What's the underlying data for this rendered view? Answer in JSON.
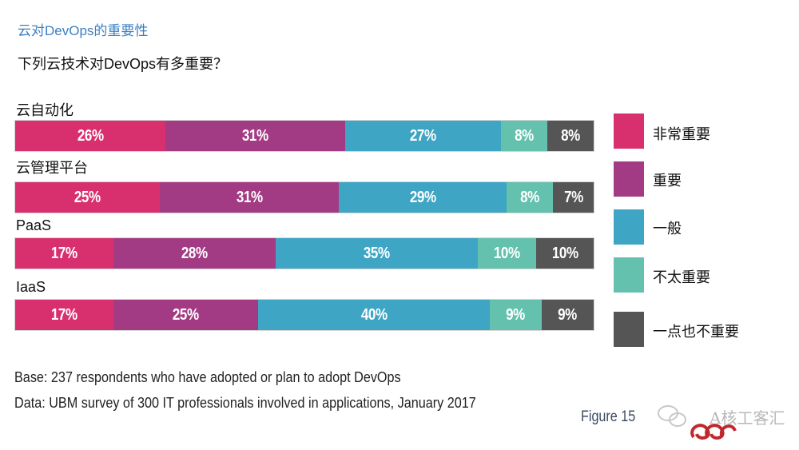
{
  "page": {
    "title": "云对DevOps的重要性",
    "question": "下列云技术对DevOps有多重要？"
  },
  "colors": {
    "very_important": "#d8306e",
    "important": "#a33a84",
    "moderate": "#3ea5c4",
    "not_very": "#63c1ae",
    "not_at_all": "#555555"
  },
  "chart_data": {
    "type": "bar",
    "orientation": "horizontal-stacked-100",
    "title": "下列云技术对DevOps有多重要？",
    "categories": [
      "云自动化",
      "云管理平台",
      "PaaS",
      "IaaS"
    ],
    "series": [
      {
        "name": "非常重要",
        "color": "#d8306e",
        "values": [
          26,
          25,
          17,
          17
        ]
      },
      {
        "name": "重要",
        "color": "#a33a84",
        "values": [
          31,
          31,
          28,
          25
        ]
      },
      {
        "name": "一般",
        "color": "#3ea5c4",
        "values": [
          27,
          29,
          35,
          40
        ]
      },
      {
        "name": "不太重要",
        "color": "#63c1ae",
        "values": [
          8,
          8,
          10,
          9
        ]
      },
      {
        "name": "一点也不重要",
        "color": "#555555",
        "values": [
          8,
          7,
          10,
          9
        ]
      }
    ],
    "value_suffix": "%",
    "legend_position": "right"
  },
  "footnotes": {
    "base": "Base: 237 respondents who have adopted or plan to adopt DevOps",
    "data": "Data: UBM survey of 300 IT professionals involved in applications, January 2017"
  },
  "figure_label": "Figure 15",
  "watermark": {
    "text": "A核工客汇",
    "icon": "wechat-icon"
  }
}
